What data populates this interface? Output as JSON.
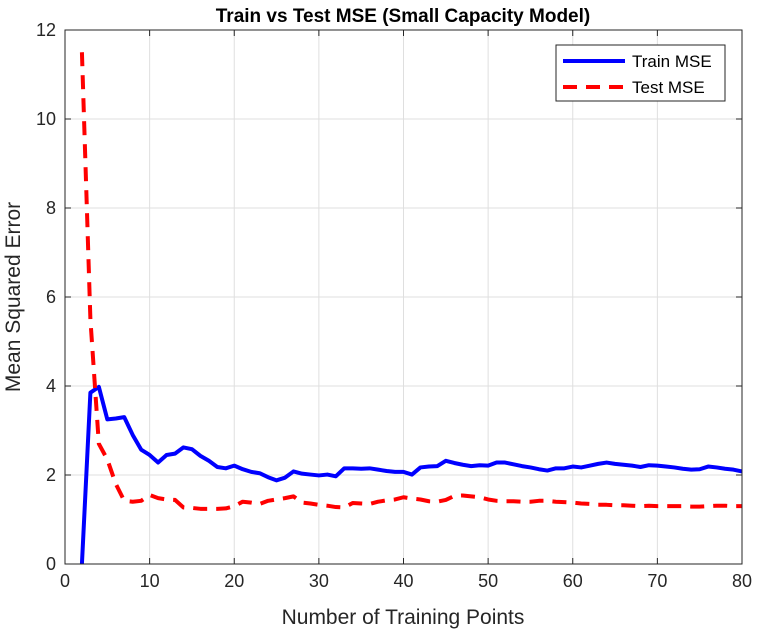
{
  "chart_data": {
    "type": "line",
    "title": "Train vs Test MSE (Small Capacity Model)",
    "xlabel": "Number of Training Points",
    "ylabel": "Mean Squared Error",
    "xlim": [
      0,
      80
    ],
    "ylim": [
      0,
      12
    ],
    "xticks": [
      0,
      10,
      20,
      30,
      40,
      50,
      60,
      70,
      80
    ],
    "yticks": [
      0,
      2,
      4,
      6,
      8,
      10,
      12
    ],
    "grid": true,
    "legend_position": "top-right",
    "x": [
      2,
      3,
      4,
      5,
      6,
      7,
      8,
      9,
      10,
      11,
      12,
      13,
      14,
      15,
      16,
      17,
      18,
      19,
      20,
      21,
      22,
      23,
      24,
      25,
      26,
      27,
      28,
      29,
      30,
      31,
      32,
      33,
      34,
      35,
      36,
      37,
      38,
      39,
      40,
      41,
      42,
      43,
      44,
      45,
      46,
      47,
      48,
      49,
      50,
      51,
      52,
      53,
      54,
      55,
      56,
      57,
      58,
      59,
      60,
      61,
      62,
      63,
      64,
      65,
      66,
      67,
      68,
      69,
      70,
      71,
      72,
      73,
      74,
      75,
      76,
      77,
      78,
      79,
      80
    ],
    "series": [
      {
        "name": "Train MSE",
        "color": "#0000ff",
        "style": "solid",
        "values": [
          0.0,
          3.85,
          3.98,
          3.25,
          3.27,
          3.3,
          2.9,
          2.57,
          2.45,
          2.28,
          2.45,
          2.48,
          2.62,
          2.58,
          2.43,
          2.32,
          2.18,
          2.15,
          2.21,
          2.13,
          2.07,
          2.04,
          1.95,
          1.88,
          1.94,
          2.08,
          2.03,
          2.01,
          1.99,
          2.01,
          1.97,
          2.15,
          2.15,
          2.14,
          2.15,
          2.12,
          2.09,
          2.07,
          2.07,
          2.01,
          2.17,
          2.19,
          2.2,
          2.32,
          2.27,
          2.23,
          2.2,
          2.22,
          2.21,
          2.28,
          2.28,
          2.24,
          2.2,
          2.17,
          2.13,
          2.1,
          2.15,
          2.15,
          2.19,
          2.17,
          2.21,
          2.25,
          2.28,
          2.25,
          2.23,
          2.21,
          2.18,
          2.22,
          2.21,
          2.19,
          2.17,
          2.14,
          2.12,
          2.13,
          2.19,
          2.17,
          2.14,
          2.12,
          2.08
        ]
      },
      {
        "name": "Test MSE",
        "color": "#ff0000",
        "style": "dashed",
        "values": [
          11.5,
          5.5,
          2.7,
          2.35,
          1.8,
          1.42,
          1.4,
          1.42,
          1.55,
          1.48,
          1.45,
          1.44,
          1.27,
          1.26,
          1.24,
          1.24,
          1.24,
          1.25,
          1.3,
          1.4,
          1.38,
          1.35,
          1.42,
          1.45,
          1.48,
          1.52,
          1.38,
          1.36,
          1.33,
          1.31,
          1.28,
          1.27,
          1.37,
          1.36,
          1.35,
          1.4,
          1.43,
          1.45,
          1.5,
          1.47,
          1.45,
          1.41,
          1.4,
          1.44,
          1.53,
          1.54,
          1.52,
          1.5,
          1.45,
          1.42,
          1.41,
          1.41,
          1.4,
          1.4,
          1.42,
          1.42,
          1.4,
          1.39,
          1.38,
          1.36,
          1.35,
          1.33,
          1.33,
          1.32,
          1.32,
          1.31,
          1.3,
          1.31,
          1.3,
          1.3,
          1.3,
          1.3,
          1.29,
          1.29,
          1.3,
          1.31,
          1.31,
          1.3,
          1.3
        ]
      }
    ]
  }
}
